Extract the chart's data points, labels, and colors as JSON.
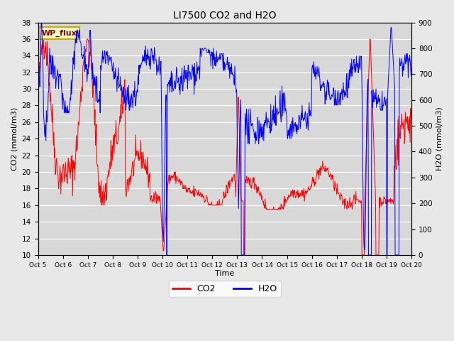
{
  "title": "LI7500 CO2 and H2O",
  "xlabel": "Time",
  "ylabel_left": "CO2 (mmol/m3)",
  "ylabel_right": "H2O (mmol/m3)",
  "co2_color": "#FF0000",
  "h2o_color": "#0000FF",
  "fig_facecolor": "#E8E8E8",
  "plot_bg_color": "#D8D8D8",
  "ylim_left": [
    10,
    38
  ],
  "ylim_right": [
    0,
    900
  ],
  "yticks_left": [
    10,
    12,
    14,
    16,
    18,
    20,
    22,
    24,
    26,
    28,
    30,
    32,
    34,
    36,
    38
  ],
  "yticks_right": [
    0,
    100,
    200,
    300,
    400,
    500,
    600,
    700,
    800,
    900
  ],
  "xtick_labels": [
    "Oct 5",
    "Oct 6",
    "Oct 7",
    "Oct 8",
    "Oct 9",
    "Oct 10",
    "Oct 11",
    "Oct 12",
    "Oct 13",
    "Oct 14",
    "Oct 15",
    "Oct 16",
    "Oct 17",
    "Oct 18",
    "Oct 19",
    "Oct 20"
  ],
  "annotation_text": "WP_flux",
  "legend_labels": [
    "CO2",
    "H2O"
  ],
  "grid_color": "#FFFFFF",
  "title_fontsize": 10,
  "label_fontsize": 8,
  "tick_fontsize": 7.5,
  "annot_fontsize": 8
}
